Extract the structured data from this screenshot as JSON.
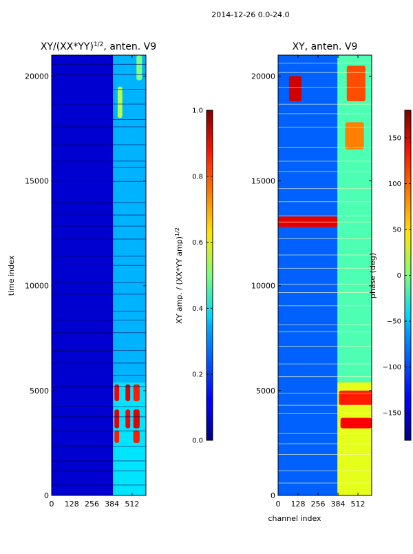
{
  "figure": {
    "suptitle": "2014-12-26 0.0-24.0"
  },
  "chart_data": [
    {
      "type": "heatmap",
      "name": "normalized-amplitude",
      "title": "XY/(XX*YY)",
      "title_exponent": "1/2",
      "title_suffix": ", anten. V9",
      "ylabel": "time index",
      "xlabel": "",
      "xlim": [
        0,
        600
      ],
      "ylim": [
        0,
        21000
      ],
      "xticks": [
        0,
        128,
        256,
        384,
        512
      ],
      "yticks": [
        0,
        5000,
        10000,
        15000,
        20000
      ],
      "colorbar": {
        "label": "XY amp. / (XX*YY amp)",
        "label_exponent": "1/2",
        "range": [
          0.0,
          1.0
        ],
        "ticks": [
          "0.0",
          "0.2",
          "0.4",
          "0.6",
          "0.8",
          "1.0"
        ],
        "colormap": "jet"
      },
      "bands": [
        {
          "x0": 0,
          "x1": 390,
          "y0": 0,
          "y1": 21000,
          "level": 0.08
        },
        {
          "x0": 390,
          "x1": 600,
          "y0": 0,
          "y1": 5400,
          "level": 0.35
        },
        {
          "x0": 390,
          "x1": 600,
          "y0": 5400,
          "y1": 21000,
          "level": 0.3
        }
      ],
      "hotspots": [
        {
          "x0": 400,
          "x1": 430,
          "y0": 4500,
          "y1": 5300,
          "level": 0.88
        },
        {
          "x0": 470,
          "x1": 500,
          "y0": 4500,
          "y1": 5300,
          "level": 0.9
        },
        {
          "x0": 520,
          "x1": 560,
          "y0": 4500,
          "y1": 5300,
          "level": 0.85
        },
        {
          "x0": 400,
          "x1": 430,
          "y0": 3200,
          "y1": 4100,
          "level": 0.9
        },
        {
          "x0": 470,
          "x1": 500,
          "y0": 3200,
          "y1": 4100,
          "level": 0.88
        },
        {
          "x0": 520,
          "x1": 560,
          "y0": 3200,
          "y1": 4100,
          "level": 0.9
        },
        {
          "x0": 400,
          "x1": 430,
          "y0": 2500,
          "y1": 3100,
          "level": 0.85
        },
        {
          "x0": 520,
          "x1": 560,
          "y0": 2500,
          "y1": 3100,
          "level": 0.85
        },
        {
          "x0": 420,
          "x1": 450,
          "y0": 18000,
          "y1": 19500,
          "level": 0.55
        },
        {
          "x0": 540,
          "x1": 575,
          "y0": 19800,
          "y1": 21000,
          "level": 0.5
        }
      ]
    },
    {
      "type": "heatmap",
      "name": "phase",
      "title": "XY, anten. V9",
      "ylabel": "",
      "xlabel": "channel index",
      "xlim": [
        0,
        600
      ],
      "ylim": [
        0,
        21000
      ],
      "xticks": [
        0,
        128,
        256,
        384,
        512
      ],
      "yticks": [
        0,
        5000,
        10000,
        15000,
        20000
      ],
      "colorbar": {
        "label": "phase (deg)",
        "range": [
          -180,
          180
        ],
        "ticks": [
          "−150",
          "−100",
          "−50",
          "0",
          "50",
          "100",
          "150"
        ],
        "tick_values": [
          -150,
          -100,
          -50,
          0,
          50,
          100,
          150
        ],
        "colormap": "jet"
      },
      "bands": [
        {
          "x0": 0,
          "x1": 380,
          "y0": 0,
          "y1": 21000,
          "level": 0.22
        },
        {
          "x0": 380,
          "x1": 600,
          "y0": 0,
          "y1": 5400,
          "level": 0.6
        },
        {
          "x0": 380,
          "x1": 600,
          "y0": 5400,
          "y1": 21000,
          "level": 0.45
        }
      ],
      "hotspots": [
        {
          "x0": 70,
          "x1": 150,
          "y0": 18800,
          "y1": 20000,
          "level": 0.92
        },
        {
          "x0": 0,
          "x1": 380,
          "y0": 12800,
          "y1": 13300,
          "level": 0.9
        },
        {
          "x0": 390,
          "x1": 600,
          "y0": 4300,
          "y1": 5000,
          "level": 0.85
        },
        {
          "x0": 400,
          "x1": 600,
          "y0": 3200,
          "y1": 3700,
          "level": 0.88
        },
        {
          "x0": 440,
          "x1": 560,
          "y0": 18800,
          "y1": 20500,
          "level": 0.8
        },
        {
          "x0": 430,
          "x1": 550,
          "y0": 16500,
          "y1": 17800,
          "level": 0.75
        }
      ]
    }
  ]
}
